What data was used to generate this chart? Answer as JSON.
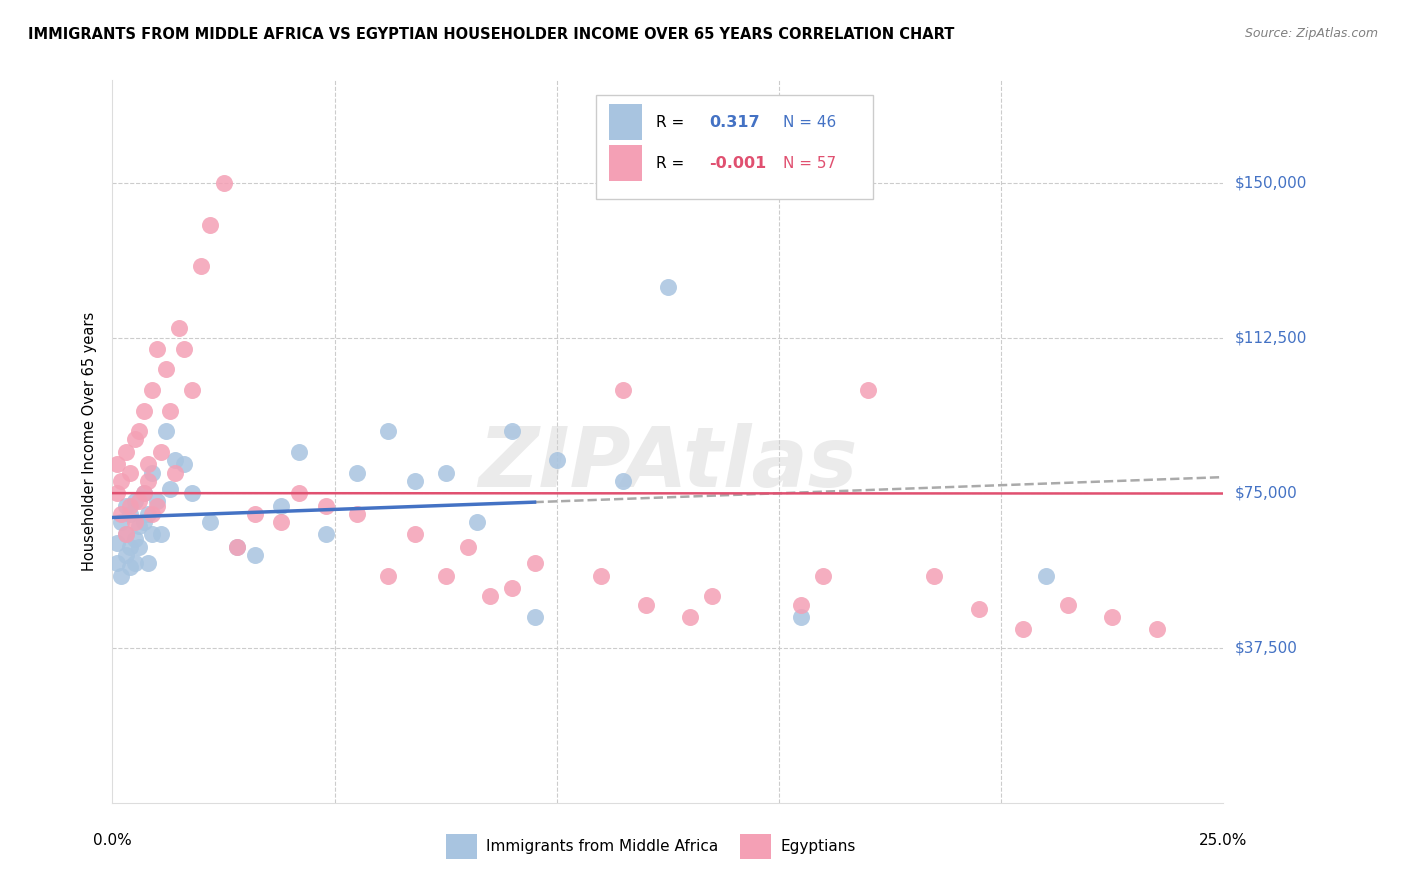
{
  "title": "IMMIGRANTS FROM MIDDLE AFRICA VS EGYPTIAN HOUSEHOLDER INCOME OVER 65 YEARS CORRELATION CHART",
  "source": "Source: ZipAtlas.com",
  "ylabel": "Householder Income Over 65 years",
  "xlim": [
    0.0,
    0.25
  ],
  "ylim": [
    0,
    175000
  ],
  "yticks": [
    0,
    37500,
    75000,
    112500,
    150000
  ],
  "xtick_vals": [
    0.0,
    0.05,
    0.1,
    0.15,
    0.2,
    0.25
  ],
  "blue_dot_color": "#a8c4e0",
  "pink_dot_color": "#f4a0b5",
  "blue_line_color": "#4472c4",
  "pink_line_color": "#e05070",
  "gray_dash_color": "#aaaaaa",
  "right_label_color": "#4472c4",
  "R_blue": 0.317,
  "N_blue": 46,
  "R_pink": -0.001,
  "N_pink": 57,
  "legend_label_blue": "Immigrants from Middle Africa",
  "legend_label_pink": "Egyptians",
  "watermark": "ZIPAtlas",
  "blue_x": [
    0.001,
    0.001,
    0.002,
    0.002,
    0.003,
    0.003,
    0.003,
    0.004,
    0.004,
    0.004,
    0.005,
    0.005,
    0.005,
    0.006,
    0.006,
    0.007,
    0.007,
    0.008,
    0.008,
    0.009,
    0.009,
    0.01,
    0.011,
    0.012,
    0.013,
    0.014,
    0.016,
    0.018,
    0.022,
    0.028,
    0.032,
    0.038,
    0.042,
    0.048,
    0.055,
    0.062,
    0.068,
    0.075,
    0.082,
    0.09,
    0.095,
    0.1,
    0.115,
    0.125,
    0.155,
    0.21
  ],
  "blue_y": [
    58000,
    63000,
    55000,
    68000,
    60000,
    65000,
    72000,
    57000,
    62000,
    70000,
    64000,
    58000,
    73000,
    67000,
    62000,
    75000,
    68000,
    70000,
    58000,
    65000,
    80000,
    73000,
    65000,
    90000,
    76000,
    83000,
    82000,
    75000,
    68000,
    62000,
    60000,
    72000,
    85000,
    65000,
    80000,
    90000,
    78000,
    80000,
    68000,
    90000,
    45000,
    83000,
    78000,
    125000,
    45000,
    55000
  ],
  "pink_x": [
    0.001,
    0.001,
    0.002,
    0.002,
    0.003,
    0.003,
    0.004,
    0.004,
    0.005,
    0.005,
    0.006,
    0.006,
    0.007,
    0.007,
    0.008,
    0.008,
    0.009,
    0.009,
    0.01,
    0.01,
    0.011,
    0.012,
    0.013,
    0.014,
    0.015,
    0.016,
    0.018,
    0.02,
    0.022,
    0.025,
    0.028,
    0.032,
    0.038,
    0.042,
    0.048,
    0.055,
    0.062,
    0.068,
    0.075,
    0.08,
    0.085,
    0.09,
    0.095,
    0.11,
    0.115,
    0.12,
    0.13,
    0.135,
    0.155,
    0.16,
    0.17,
    0.185,
    0.195,
    0.205,
    0.215,
    0.225,
    0.235
  ],
  "pink_y": [
    75000,
    82000,
    70000,
    78000,
    65000,
    85000,
    72000,
    80000,
    68000,
    88000,
    73000,
    90000,
    75000,
    95000,
    78000,
    82000,
    70000,
    100000,
    72000,
    110000,
    85000,
    105000,
    95000,
    80000,
    115000,
    110000,
    100000,
    130000,
    140000,
    150000,
    62000,
    70000,
    68000,
    75000,
    72000,
    70000,
    55000,
    65000,
    55000,
    62000,
    50000,
    52000,
    58000,
    55000,
    100000,
    48000,
    45000,
    50000,
    48000,
    55000,
    100000,
    55000,
    47000,
    42000,
    48000,
    45000,
    42000
  ]
}
